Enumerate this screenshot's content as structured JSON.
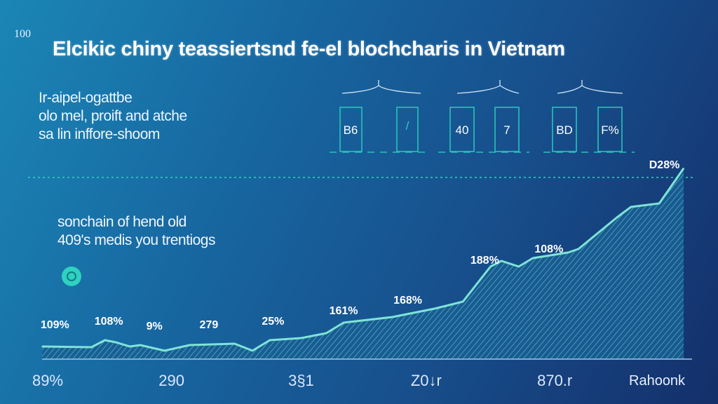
{
  "header": {
    "corner_number": "100",
    "title": "Elcikic chiny teassiertsnd fe-el blochcharis in Vietnam"
  },
  "intro_lines": [
    "Ir-aipel-ogattbe",
    "olo mel, proift and atche",
    "sa lin inffore-shoom"
  ],
  "stat_boxes": [
    "B6",
    "/",
    "40",
    "7",
    "BD",
    "F%"
  ],
  "note_lines": [
    "sonchain of hend old",
    "409's medis you trentiogs"
  ],
  "brand": "Rahoonk",
  "colors": {
    "line": "#7fe3d6",
    "accent": "#2fd1c0",
    "box": "#27c4b8"
  },
  "chart_data": {
    "type": "area",
    "title": "Elcikic chiny teassiertsnd fe-el blochcharis in Vietnam",
    "xlabel": "",
    "ylabel": "",
    "xlim": [
      0,
      100
    ],
    "ylim": [
      0,
      280
    ],
    "grid": false,
    "x": [
      0,
      7.7,
      9.8,
      11.5,
      13.7,
      15.3,
      19.1,
      23,
      30,
      32.8,
      35.5,
      40.4,
      44.3,
      47,
      54.6,
      57.9,
      61.2,
      65.6,
      69.9,
      71.6,
      74.3,
      76.5,
      82,
      83.6,
      89.6,
      91.8,
      96.2,
      100
    ],
    "y": [
      18,
      17,
      27,
      24,
      18,
      20,
      12,
      20,
      22,
      12,
      27,
      30,
      37,
      52,
      60,
      66,
      72,
      82,
      132,
      140,
      132,
      144,
      152,
      157,
      202,
      217,
      222,
      272
    ],
    "x_tick_labels": [
      {
        "x": 0,
        "label": "89%"
      },
      {
        "x": 19.7,
        "label": "290"
      },
      {
        "x": 39.9,
        "label": "3§1"
      },
      {
        "x": 59,
        "label": "Z0↓r"
      },
      {
        "x": 78.7,
        "label": "870.r"
      }
    ],
    "data_labels": [
      {
        "x": 2,
        "y": 40,
        "label": "109%"
      },
      {
        "x": 10.4,
        "y": 45,
        "label": "108%"
      },
      {
        "x": 17.5,
        "y": 38,
        "label": "9%"
      },
      {
        "x": 26,
        "y": 40,
        "label": "279"
      },
      {
        "x": 36,
        "y": 45,
        "label": "25%"
      },
      {
        "x": 47,
        "y": 60,
        "label": "161%"
      },
      {
        "x": 57,
        "y": 75,
        "label": "168%"
      },
      {
        "x": 69,
        "y": 132,
        "label": "188%"
      },
      {
        "x": 79,
        "y": 148,
        "label": "108%"
      },
      {
        "x": 97,
        "y": 268,
        "label": "D28%"
      }
    ]
  }
}
